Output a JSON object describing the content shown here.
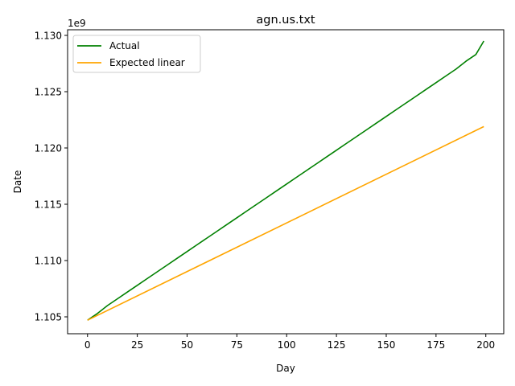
{
  "chart_data": {
    "type": "line",
    "title": "agn.us.txt",
    "xlabel": "Day",
    "ylabel": "Date",
    "y_offset_label": "1e9",
    "xlim": [
      -10,
      209
    ],
    "ylim": [
      1.1035,
      1.1305
    ],
    "x_ticks": [
      0,
      25,
      50,
      75,
      100,
      125,
      150,
      175,
      200
    ],
    "x_tick_labels": [
      "0",
      "25",
      "50",
      "75",
      "100",
      "125",
      "150",
      "175",
      "200"
    ],
    "y_ticks": [
      1.105,
      1.11,
      1.115,
      1.12,
      1.125,
      1.13
    ],
    "y_tick_labels": [
      "1.105",
      "1.110",
      "1.115",
      "1.120",
      "1.125",
      "1.130"
    ],
    "grid": false,
    "legend_position": "upper-left",
    "series": [
      {
        "name": "Actual",
        "color": "#008000",
        "x": [
          0,
          5,
          10,
          15,
          20,
          25,
          30,
          35,
          40,
          45,
          50,
          55,
          60,
          65,
          70,
          75,
          80,
          85,
          90,
          95,
          100,
          105,
          110,
          115,
          120,
          125,
          130,
          135,
          140,
          145,
          150,
          155,
          160,
          165,
          170,
          175,
          180,
          185,
          190,
          195,
          199
        ],
        "y": [
          1.1047,
          1.1053,
          1.106,
          1.1066,
          1.1072,
          1.1078,
          1.1084,
          1.109,
          1.1096,
          1.1102,
          1.1108,
          1.1114,
          1.112,
          1.1126,
          1.1132,
          1.1138,
          1.1144,
          1.115,
          1.1156,
          1.1162,
          1.1168,
          1.1174,
          1.118,
          1.1186,
          1.1192,
          1.1198,
          1.1204,
          1.121,
          1.1216,
          1.1222,
          1.1228,
          1.1234,
          1.124,
          1.1246,
          1.1252,
          1.1258,
          1.1264,
          1.127,
          1.1277,
          1.1283,
          1.1295
        ]
      },
      {
        "name": "Expected linear",
        "color": "#ffa500",
        "x": [
          0,
          199
        ],
        "y": [
          1.1047,
          1.1219
        ]
      }
    ]
  }
}
